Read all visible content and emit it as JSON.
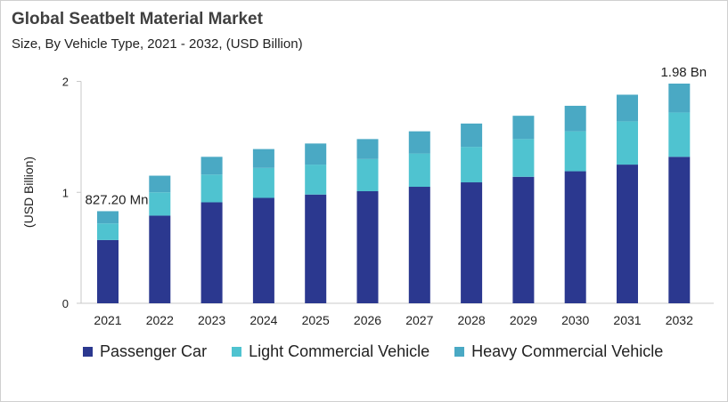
{
  "chart_data": {
    "type": "bar",
    "stacked": true,
    "title": "Global Seatbelt Material Market",
    "subtitle": "Size, By Vehicle Type, 2021 - 2032, (USD Billion)",
    "xlabel": "",
    "ylabel": "(USD Billion)",
    "ylim": [
      0,
      2
    ],
    "yticks": [
      "0",
      "1",
      "2"
    ],
    "grid": false,
    "legend_position": "bottom",
    "categories": [
      "2021",
      "2022",
      "2023",
      "2024",
      "2025",
      "2026",
      "2027",
      "2028",
      "2029",
      "2030",
      "2031",
      "2032"
    ],
    "series": [
      {
        "name": "Passenger Car",
        "color": "#2b388f",
        "values": [
          0.57,
          0.79,
          0.91,
          0.95,
          0.98,
          1.01,
          1.05,
          1.09,
          1.14,
          1.19,
          1.25,
          1.32
        ]
      },
      {
        "name": "Light Commercial Vehicle",
        "color": "#4fc3d0",
        "values": [
          0.15,
          0.21,
          0.25,
          0.27,
          0.27,
          0.29,
          0.3,
          0.32,
          0.34,
          0.36,
          0.39,
          0.4
        ]
      },
      {
        "name": "Heavy Commercial Vehicle",
        "color": "#4aa9c4",
        "values": [
          0.11,
          0.15,
          0.16,
          0.17,
          0.19,
          0.18,
          0.2,
          0.21,
          0.21,
          0.23,
          0.24,
          0.26
        ]
      }
    ],
    "annotations": [
      {
        "category": "2021",
        "text": "827.20 Mn"
      },
      {
        "category": "2032",
        "text": "1.98 Bn"
      }
    ]
  }
}
